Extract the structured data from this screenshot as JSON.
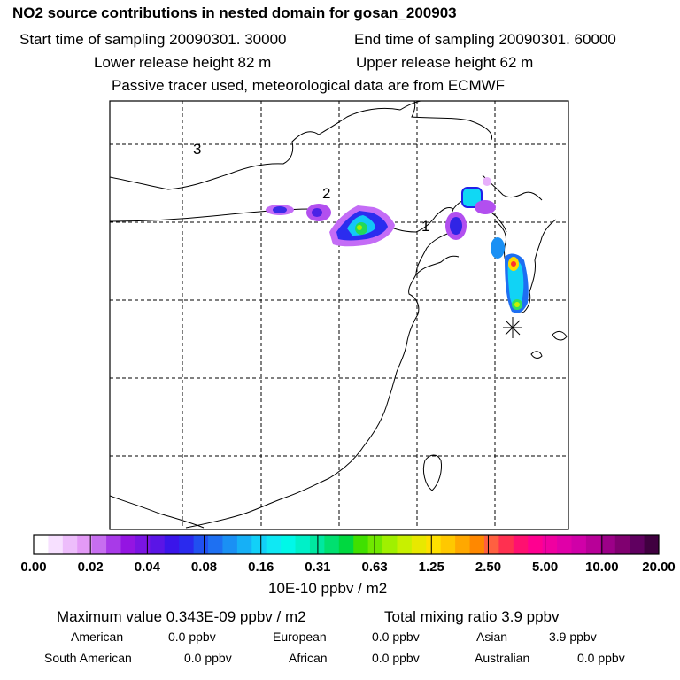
{
  "header": {
    "title": "NO2 source contributions in nested domain for gosan_200903",
    "start_sampling": "Start time of sampling 20090301. 30000",
    "end_sampling": "End time of sampling 20090301. 60000",
    "lower_release": "Lower release height   82 m",
    "upper_release": "Upper release height   62 m",
    "tracer_note": "Passive tracer used, meteorological data are from ECMWF"
  },
  "map": {
    "region_labels": [
      "1",
      "2",
      "3"
    ],
    "receptor_marker": "gosan-receptor"
  },
  "colorbar": {
    "ticks": [
      "0.00",
      "0.02",
      "0.04",
      "0.08",
      "0.16",
      "0.31",
      "0.63",
      "1.25",
      "2.50",
      "5.00",
      "10.00",
      "20.00"
    ],
    "colors": [
      "#ffffff",
      "#f7e0ff",
      "#edbdfb",
      "#e39af6",
      "#c76ef0",
      "#a83ae8",
      "#9415e2",
      "#7a14e3",
      "#5a15e6",
      "#3a15ea",
      "#2a2aee",
      "#2050f0",
      "#1e70f2",
      "#1a90f4",
      "#16b0f6",
      "#12d0f8",
      "#0fe8f4",
      "#00f8e8",
      "#00f0c8",
      "#00e8a0",
      "#00e070",
      "#00d840",
      "#40e000",
      "#70e800",
      "#a0f000",
      "#c8f000",
      "#e8e800",
      "#ffe000",
      "#ffc800",
      "#ffa800",
      "#ff8800",
      "#ff6040",
      "#ff3050",
      "#ff1070",
      "#ff0090",
      "#f000a0",
      "#e000a8",
      "#d000a8",
      "#b80098",
      "#9c0088",
      "#800070",
      "#600060",
      "#400040"
    ],
    "unit_label": "10E-10 ppbv / m2"
  },
  "footer": {
    "maximum": "Maximum value  0.343E-09 ppbv / m2",
    "total": "Total mixing ratio       3.9 ppbv",
    "american_label": "American",
    "american_value": "0.0 ppbv",
    "european_label": "European",
    "european_value": "0.0 ppbv",
    "asian_label": "Asian",
    "asian_value": "3.9 ppbv",
    "south_american_label": "South American",
    "south_american_value": "0.0 ppbv",
    "african_label": "African",
    "african_value": "0.0 ppbv",
    "australian_label": "Australian",
    "australian_value": "0.0 ppbv"
  }
}
